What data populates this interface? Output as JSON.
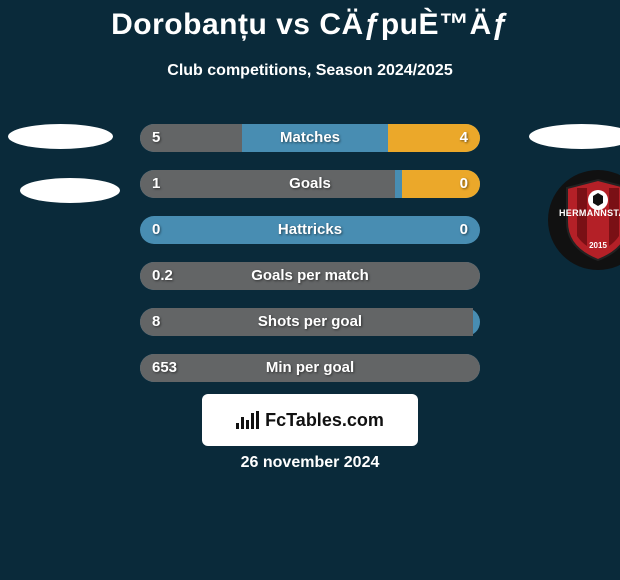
{
  "background_color": "#0a2a3a",
  "text_color": "#ffffff",
  "title": "Dorobanțu vs CÄƒpuÈ™Äƒ",
  "title_fontsize": 30,
  "subtitle": "Club competitions, Season 2024/2025",
  "subtitle_fontsize": 16,
  "left_color": "#636566",
  "right_color": "#eba82a",
  "bar_bg_color": "#488db2",
  "bars": [
    {
      "label": "Matches",
      "left_val": "5",
      "right_val": "4",
      "left_pct": 30,
      "right_pct": 27
    },
    {
      "label": "Goals",
      "left_val": "1",
      "right_val": "0",
      "left_pct": 75,
      "right_pct": 23
    },
    {
      "label": "Hattricks",
      "left_val": "0",
      "right_val": "0",
      "left_pct": 0,
      "right_pct": 0
    },
    {
      "label": "Goals per match",
      "left_val": "0.2",
      "right_val": "",
      "left_pct": 100,
      "right_pct": 0
    },
    {
      "label": "Shots per goal",
      "left_val": "8",
      "right_val": "",
      "left_pct": 98,
      "right_pct": 0
    },
    {
      "label": "Min per goal",
      "left_val": "653",
      "right_val": "",
      "left_pct": 100,
      "right_pct": 0
    }
  ],
  "badge": {
    "outer_color": "#b42027",
    "stripe_color": "#7a1015",
    "ball_color": "#ffffff",
    "text": "HERMANNSTADT",
    "year": "2015"
  },
  "footer": {
    "brand": "FcTables.com",
    "icon_color": "#111111",
    "box_bg": "#ffffff"
  },
  "date": "26 november 2024"
}
